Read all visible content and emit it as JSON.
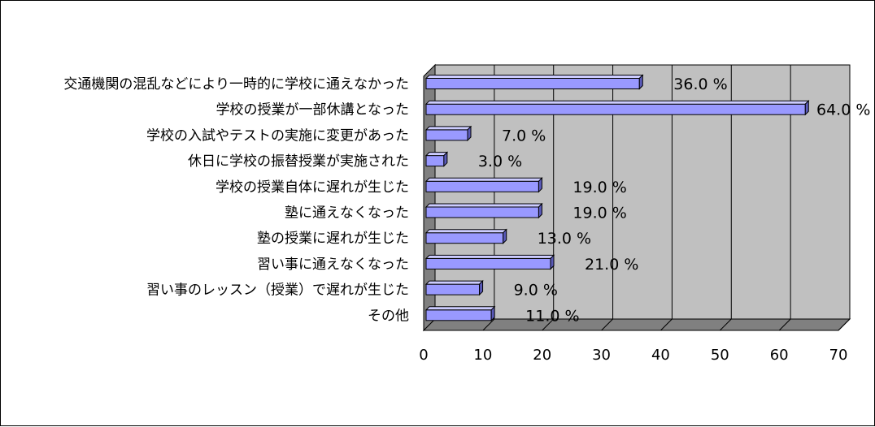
{
  "chart_data": {
    "type": "bar",
    "orientation": "horizontal",
    "categories": [
      "交通機関の混乱などにより一時的に学校に通えなかった",
      "学校の授業が一部休講となった",
      "学校の入試やテストの実施に変更があった",
      "休日に学校の振替授業が実施された",
      "学校の授業自体に遅れが生じた",
      "塾に通えなくなった",
      "塾の授業に遅れが生じた",
      "習い事に通えなくなった",
      "習い事のレッスン（授業）で遅れが生じた",
      "その他"
    ],
    "values": [
      36.0,
      64.0,
      7.0,
      3.0,
      19.0,
      19.0,
      13.0,
      21.0,
      9.0,
      11.0
    ],
    "value_labels": [
      "36.0 %",
      "64.0 %",
      "7.0 %",
      "3.0 %",
      "19.0 %",
      "19.0 %",
      "13.0 %",
      "21.0 %",
      "9.0 %",
      "11.0 %"
    ],
    "xlim": [
      0,
      70
    ],
    "xticks": [
      "0",
      "10",
      "20",
      "30",
      "40",
      "50",
      "60",
      "70"
    ],
    "grid": true,
    "colors": {
      "bar_front": "#9999ff",
      "bar_top": "#ccccff",
      "bar_side": "#5a5ab8",
      "wall": "#c0c0c0",
      "floor": "#808080"
    }
  }
}
